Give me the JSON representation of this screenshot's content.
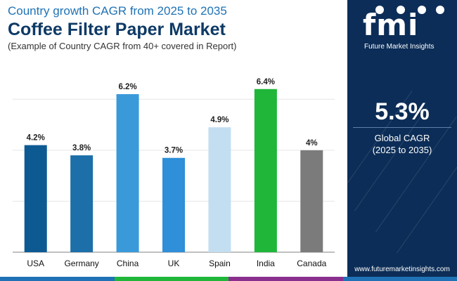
{
  "header": {
    "subtitle": "Country growth CAGR from 2025 to 2035",
    "title": "Coffee Filter Paper Market",
    "note": "(Example of Country CAGR from 40+ covered in Report)"
  },
  "chart_data": {
    "type": "bar",
    "categories": [
      "USA",
      "Germany",
      "China",
      "UK",
      "Spain",
      "India",
      "Canada"
    ],
    "values": [
      4.2,
      3.8,
      6.2,
      3.7,
      4.9,
      6.4,
      4.0
    ],
    "value_labels": [
      "4.2%",
      "3.8%",
      "6.2%",
      "3.7%",
      "4.9%",
      "6.4%",
      "4%"
    ],
    "bar_colors": [
      "#0d5a93",
      "#1c6fa8",
      "#3a9ad9",
      "#2f8fd8",
      "#c3def1",
      "#1fb63a",
      "#7b7b7b"
    ],
    "ylim": [
      0,
      7
    ],
    "grid": true,
    "legend": "none"
  },
  "side_panel": {
    "logo_text": "fmi",
    "logo_subtext": "Future Market Insights",
    "global_value": "5.3%",
    "global_label": "Global CAGR",
    "global_period": "(2025 to 2035)",
    "website": "www.futuremarketinsights.com"
  },
  "colors": {
    "panel_bg": "#0c2d57",
    "title": "#0e3a66",
    "subtitle": "#1f72b5",
    "stripe": [
      "#1f72b5",
      "#1fb63a",
      "#8b2f8f",
      "#1f72b5"
    ]
  }
}
